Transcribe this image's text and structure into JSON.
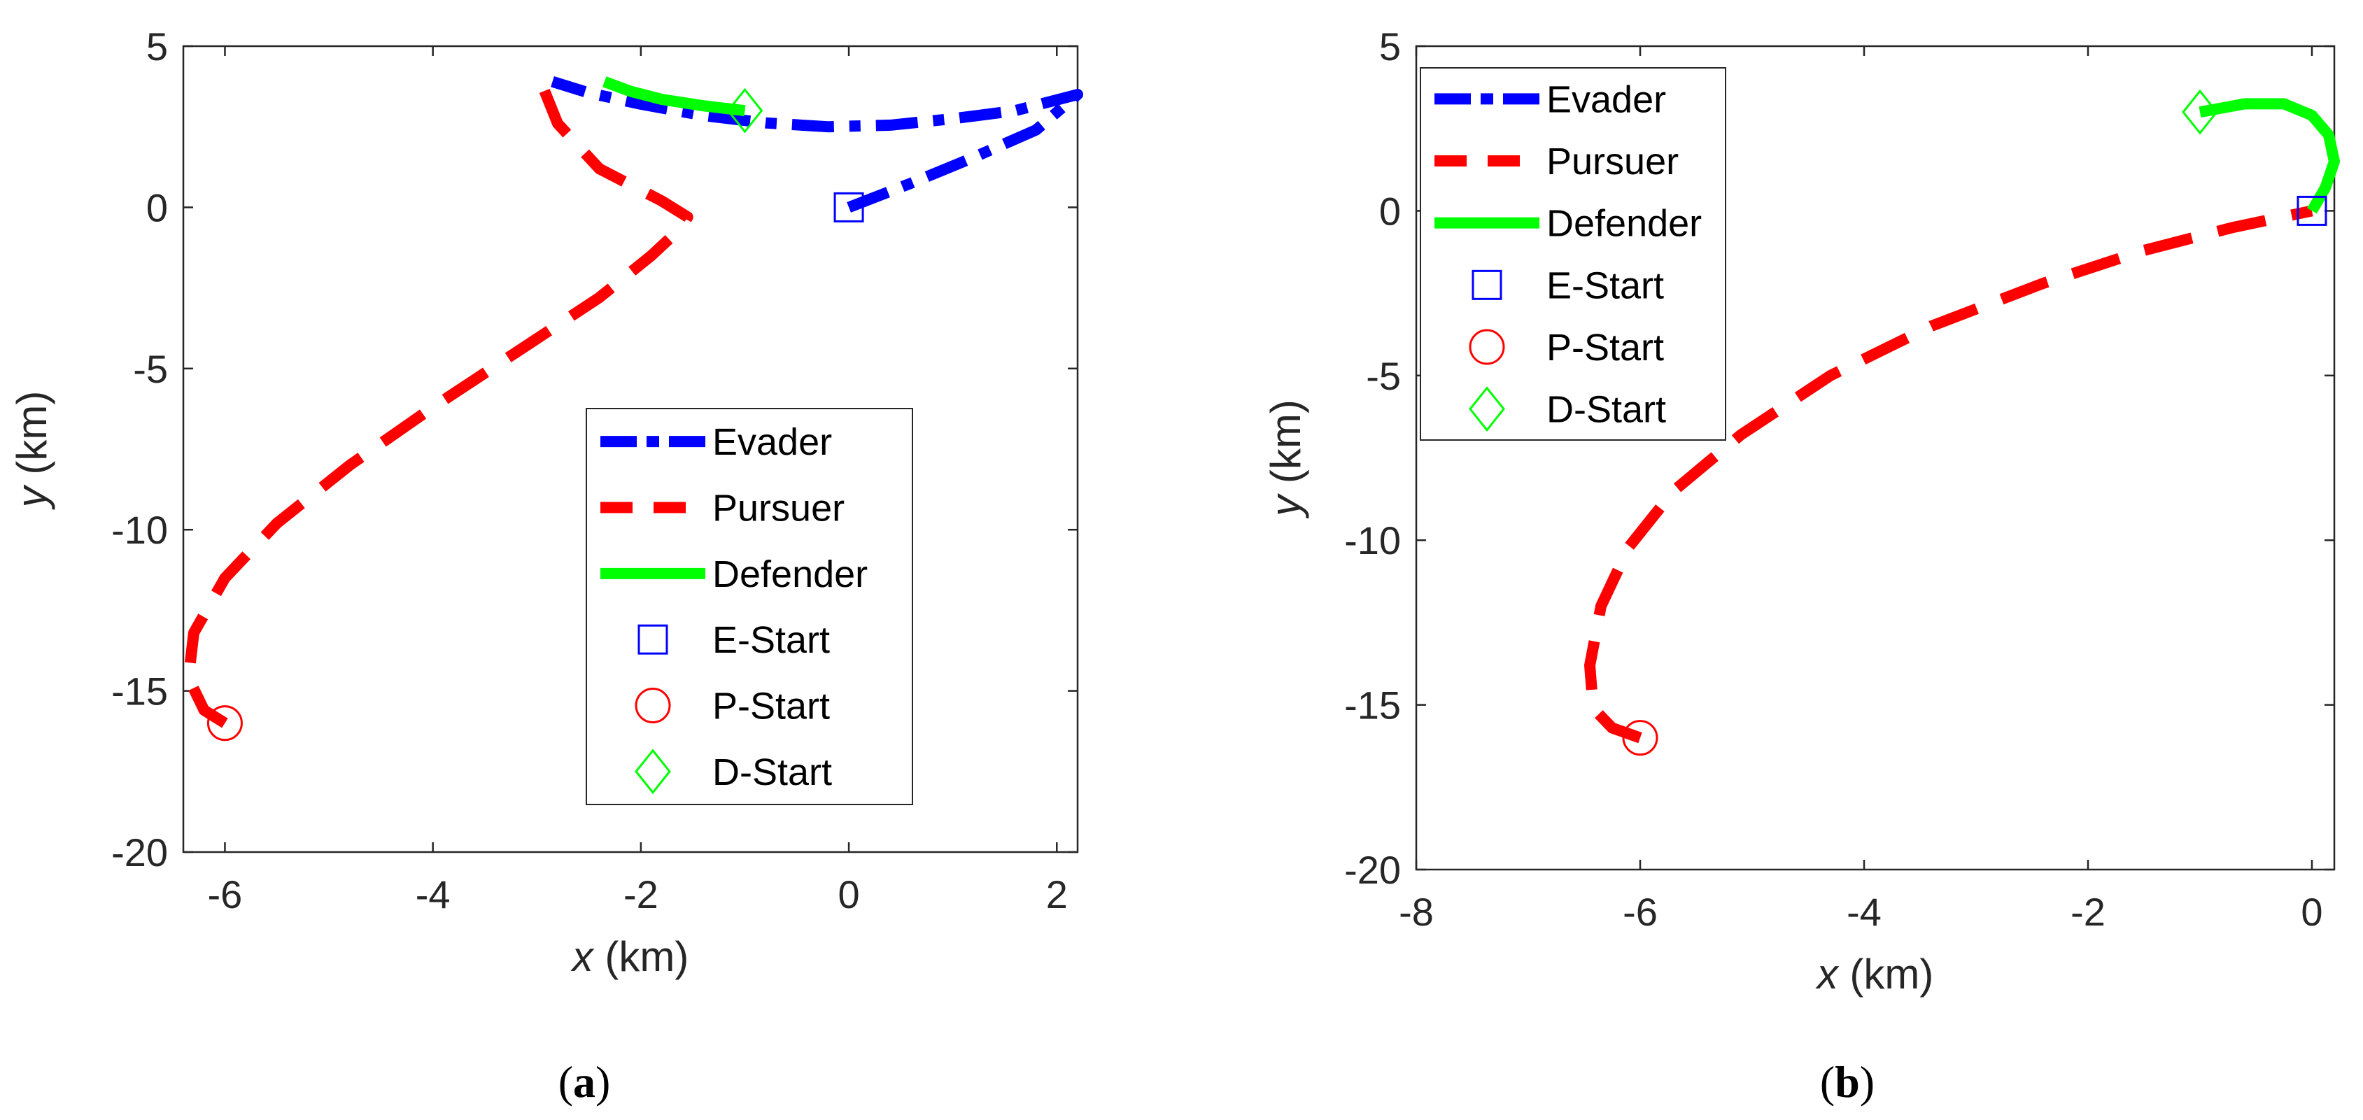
{
  "colors": {
    "evader": "#0000ff",
    "pursuer": "#ff0000",
    "defender": "#00ff00",
    "axis": "#262626"
  },
  "chart_data": [
    {
      "type": "line",
      "caption": "(a)",
      "xlabel_var": "x",
      "xlabel_unit": " (km)",
      "ylabel_var": "y",
      "ylabel_unit": " (km)",
      "xlim": [
        -6.4,
        2.2
      ],
      "ylim": [
        -20,
        5
      ],
      "xticks": [
        -6,
        -4,
        -2,
        0,
        2
      ],
      "yticks": [
        5,
        0,
        -5,
        -10,
        -15,
        -20
      ],
      "legend_position": "bottom-right",
      "series": [
        {
          "name": "Evader",
          "style": "dashdot",
          "color": "#0000ff",
          "x": [
            0,
            0.6,
            1.2,
            1.8,
            2.2,
            1.6,
            1.0,
            0.4,
            -0.2,
            -0.8,
            -1.4,
            -2.0,
            -2.5,
            -2.85
          ],
          "y": [
            0,
            0.75,
            1.55,
            2.4,
            3.5,
            3.0,
            2.75,
            2.55,
            2.5,
            2.62,
            2.85,
            3.2,
            3.55,
            3.9
          ]
        },
        {
          "name": "Pursuer",
          "style": "dashed",
          "color": "#ff0000",
          "x": [
            -6,
            -6.2,
            -6.35,
            -6.3,
            -6.0,
            -5.5,
            -4.8,
            -4.0,
            -3.2,
            -2.4,
            -1.9,
            -1.6,
            -1.55,
            -1.8,
            -2.4,
            -2.8,
            -2.95
          ],
          "y": [
            -16,
            -15.6,
            -14.6,
            -13.2,
            -11.5,
            -9.8,
            -8.0,
            -6.2,
            -4.5,
            -2.8,
            -1.5,
            -0.6,
            -0.3,
            0.2,
            1.2,
            2.6,
            3.8
          ]
        },
        {
          "name": "Defender",
          "style": "solid",
          "color": "#00ff00",
          "x": [
            -1,
            -1.4,
            -1.8,
            -2.1,
            -2.35
          ],
          "y": [
            3,
            3.15,
            3.35,
            3.6,
            3.9
          ]
        }
      ],
      "markers": [
        {
          "name": "E-Start",
          "shape": "square",
          "x": 0,
          "y": 0,
          "color": "#0000ff"
        },
        {
          "name": "P-Start",
          "shape": "circle",
          "x": -6,
          "y": -16,
          "color": "#ff0000"
        },
        {
          "name": "D-Start",
          "shape": "diamond",
          "x": -1,
          "y": 3,
          "color": "#00ff00"
        }
      ]
    },
    {
      "type": "line",
      "caption": "(b)",
      "xlabel_var": "x",
      "xlabel_unit": " (km)",
      "ylabel_var": "y",
      "ylabel_unit": " (km)",
      "xlim": [
        -8,
        0.2
      ],
      "ylim": [
        -20,
        5
      ],
      "xticks": [
        -8,
        -6,
        -4,
        -2,
        0
      ],
      "yticks": [
        5,
        0,
        -5,
        -10,
        -15,
        -20
      ],
      "legend_position": "top-left",
      "series": [
        {
          "name": "Evader",
          "style": "dashdot",
          "color": "#0000ff",
          "x": [],
          "y": []
        },
        {
          "name": "Pursuer",
          "style": "dashed",
          "color": "#ff0000",
          "x": [
            -6,
            -6.25,
            -6.42,
            -6.45,
            -6.35,
            -6.1,
            -5.7,
            -5.1,
            -4.3,
            -3.4,
            -2.4,
            -1.5,
            -0.7,
            0
          ],
          "y": [
            -16,
            -15.7,
            -15.1,
            -13.8,
            -12.0,
            -10.2,
            -8.5,
            -6.8,
            -5.0,
            -3.5,
            -2.2,
            -1.2,
            -0.5,
            0
          ]
        },
        {
          "name": "Defender",
          "style": "solid",
          "color": "#00ff00",
          "x": [
            -1,
            -0.6,
            -0.25,
            0.0,
            0.15,
            0.2,
            0.12,
            0
          ],
          "y": [
            3,
            3.25,
            3.25,
            2.9,
            2.3,
            1.5,
            0.7,
            0
          ]
        }
      ],
      "markers": [
        {
          "name": "E-Start",
          "shape": "square",
          "x": 0,
          "y": 0,
          "color": "#0000ff"
        },
        {
          "name": "P-Start",
          "shape": "circle",
          "x": -6,
          "y": -16,
          "color": "#ff0000"
        },
        {
          "name": "D-Start",
          "shape": "diamond",
          "x": -1,
          "y": 3,
          "color": "#00ff00"
        }
      ]
    }
  ]
}
